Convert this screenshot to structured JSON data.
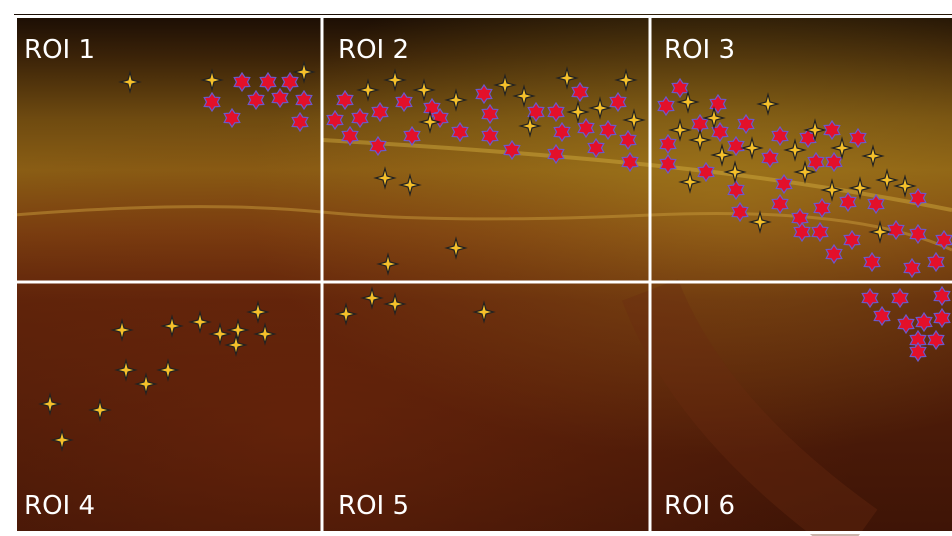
{
  "rois": [
    {
      "label": "ROI 1"
    },
    {
      "label": "ROI 2"
    },
    {
      "label": "ROI 3"
    },
    {
      "label": "ROI 4"
    },
    {
      "label": "ROI 5"
    },
    {
      "label": "ROI 6"
    }
  ]
}
